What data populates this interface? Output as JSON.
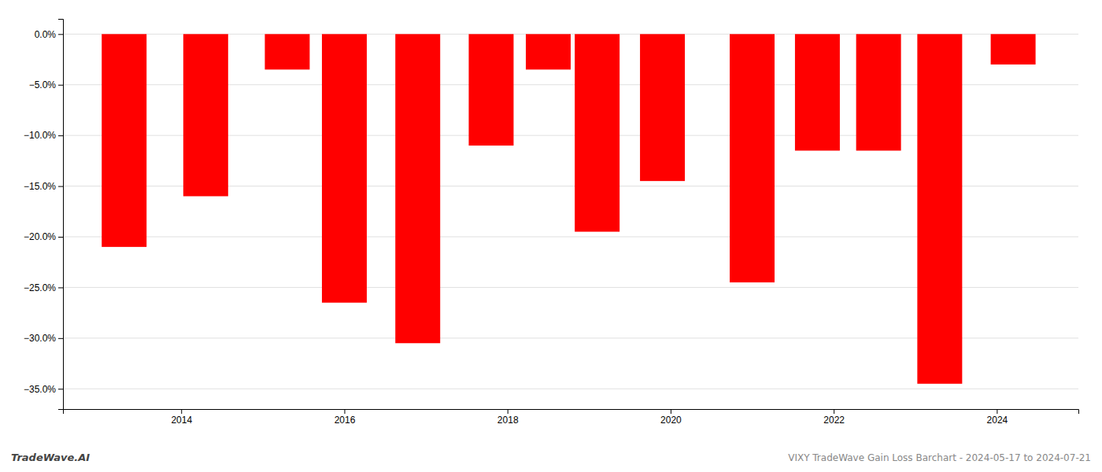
{
  "chart_data": {
    "type": "bar",
    "x": [
      2013.3,
      2014.3,
      2015.3,
      2016.0,
      2016.9,
      2017.8,
      2018.5,
      2019.1,
      2019.9,
      2021.0,
      2021.8,
      2022.55,
      2023.3,
      2024.2
    ],
    "values": [
      -21.0,
      -16.0,
      -3.5,
      -26.5,
      -30.5,
      -11.0,
      -3.5,
      -19.5,
      -14.5,
      -24.5,
      -11.5,
      -11.5,
      -34.5,
      -3.0
    ],
    "color": "#ff0000",
    "xlim": [
      2012.55,
      2025.0
    ],
    "xticks": [
      2014,
      2016,
      2018,
      2020,
      2022,
      2024
    ],
    "ylim": [
      -37,
      1.5
    ],
    "yticks": [
      {
        "value": 0.0,
        "label": "0.0%"
      },
      {
        "value": -5.0,
        "label": "−5.0%"
      },
      {
        "value": -10.0,
        "label": "−10.0%"
      },
      {
        "value": -15.0,
        "label": "−15.0%"
      },
      {
        "value": -20.0,
        "label": "−20.0%"
      },
      {
        "value": -25.0,
        "label": "−25.0%"
      },
      {
        "value": -30.0,
        "label": "−30.0%"
      },
      {
        "value": -35.0,
        "label": "−35.0%"
      }
    ],
    "grid": true,
    "annotations": [
      "TradeWave.AI",
      "VIXY TradeWave Gain Loss Barchart - 2024-05-17 to 2024-07-21"
    ]
  }
}
